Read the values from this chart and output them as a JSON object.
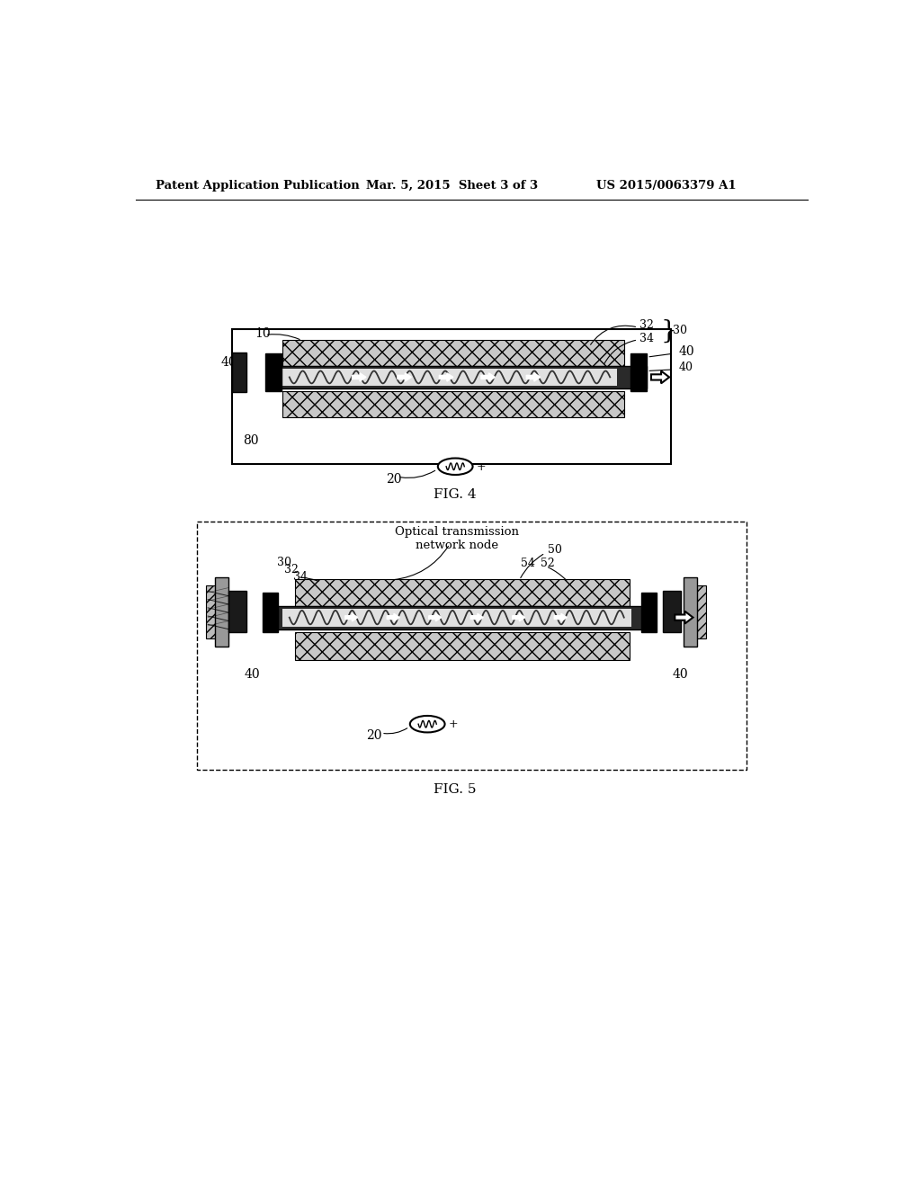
{
  "bg_color": "#ffffff",
  "header_left": "Patent Application Publication",
  "header_mid": "Mar. 5, 2015  Sheet 3 of 3",
  "header_right": "US 2015/0063379 A1",
  "fig4_label": "FIG. 4",
  "fig5_label": "FIG. 5",
  "fig5_box_label": "Optical transmission\nnetwork node"
}
